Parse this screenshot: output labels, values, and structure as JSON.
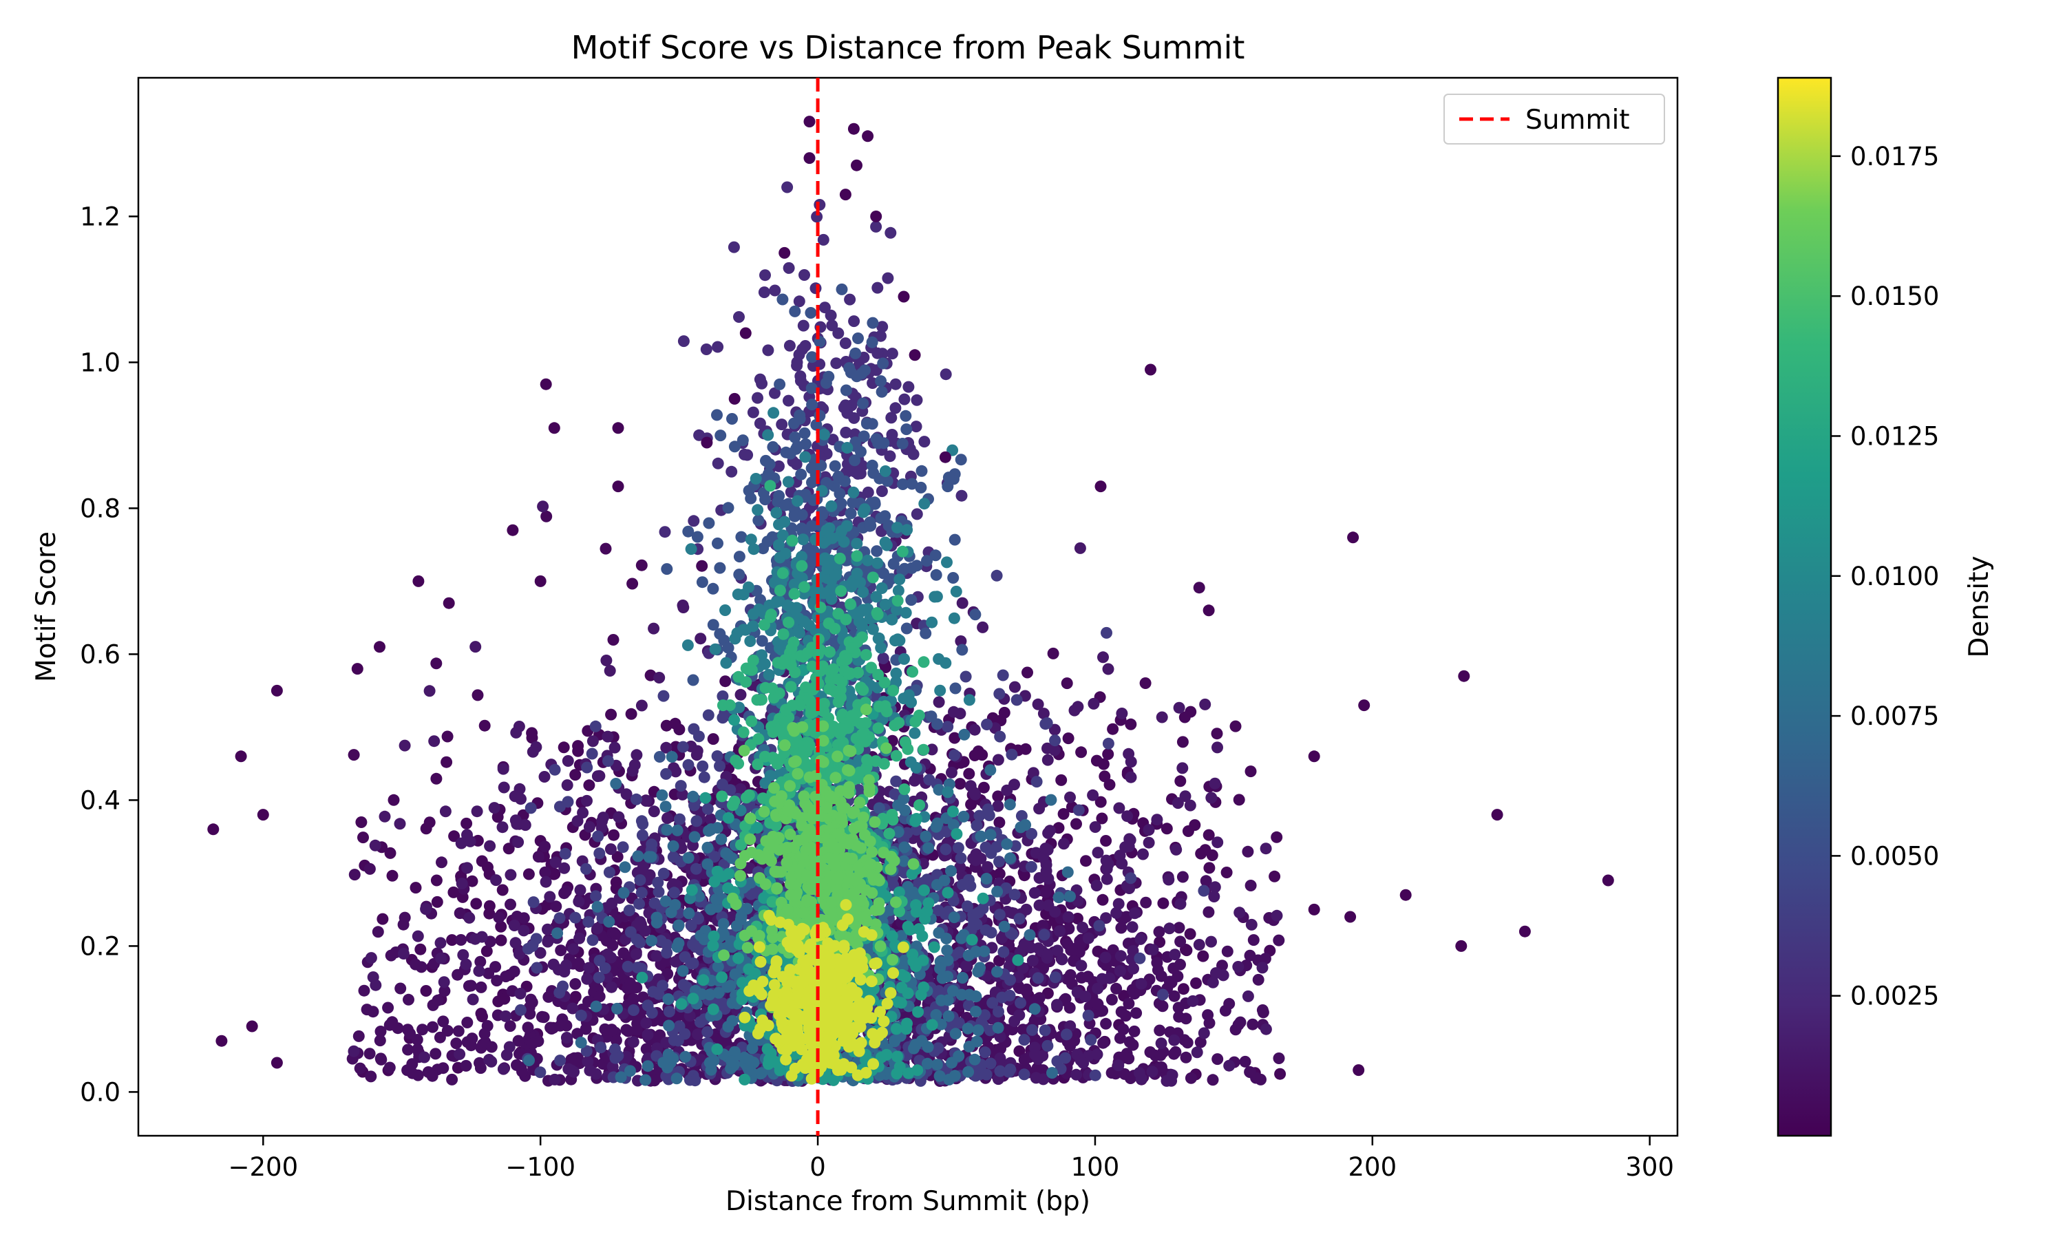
{
  "chart_data": {
    "type": "scatter",
    "title": "Motif Score vs Distance from Peak Summit",
    "xlabel": "Distance from Summit (bp)",
    "ylabel": "Motif Score",
    "xlim": [
      -245,
      310
    ],
    "ylim": [
      -0.06,
      1.39
    ],
    "x_ticks": [
      -200,
      -100,
      0,
      100,
      200,
      300
    ],
    "x_tick_labels": [
      "−200",
      "−100",
      "0",
      "100",
      "200",
      "300"
    ],
    "y_ticks": [
      0.0,
      0.2,
      0.4,
      0.6,
      0.8,
      1.0,
      1.2
    ],
    "y_tick_labels": [
      "0.0",
      "0.2",
      "0.4",
      "0.6",
      "0.8",
      "1.0",
      "1.2"
    ],
    "grid": false,
    "colormap": "viridis",
    "colorbar": {
      "label": "Density",
      "range": [
        0.0,
        0.0189
      ],
      "ticks": [
        0.0025,
        0.005,
        0.0075,
        0.01,
        0.0125,
        0.015,
        0.0175
      ],
      "tick_labels": [
        "0.0025",
        "0.0050",
        "0.0075",
        "0.0100",
        "0.0125",
        "0.0150",
        "0.0175"
      ]
    },
    "reference_line": {
      "name": "Summit",
      "x": 0,
      "color": "#ff0000",
      "style": "dashed"
    },
    "legend": {
      "position": "top-right",
      "entries": [
        "Summit"
      ]
    },
    "points": [
      {
        "x": -218,
        "y": 0.36,
        "d": 0.0002
      },
      {
        "x": -215,
        "y": 0.07,
        "d": 0.0002
      },
      {
        "x": -208,
        "y": 0.46,
        "d": 0.0002
      },
      {
        "x": -204,
        "y": 0.09,
        "d": 0.0002
      },
      {
        "x": -200,
        "y": 0.38,
        "d": 0.0002
      },
      {
        "x": -195,
        "y": 0.55,
        "d": 0.0002
      },
      {
        "x": -195,
        "y": 0.04,
        "d": 0.0002
      },
      {
        "x": -144,
        "y": 0.7,
        "d": 0.0002
      },
      {
        "x": -133,
        "y": 0.67,
        "d": 0.0002
      },
      {
        "x": -110,
        "y": 0.77,
        "d": 0.0002
      },
      {
        "x": -98,
        "y": 0.97,
        "d": 0.0002
      },
      {
        "x": -95,
        "y": 0.91,
        "d": 0.0002
      },
      {
        "x": -72,
        "y": 0.91,
        "d": 0.0002
      },
      {
        "x": -72,
        "y": 0.83,
        "d": 0.0002
      },
      {
        "x": -100,
        "y": 0.7,
        "d": 0.0002
      },
      {
        "x": -158,
        "y": 0.61,
        "d": 0.0002
      },
      {
        "x": -166,
        "y": 0.58,
        "d": 0.0002
      },
      {
        "x": 120,
        "y": 0.99,
        "d": 0.0002
      },
      {
        "x": 102,
        "y": 0.83,
        "d": 0.0002
      },
      {
        "x": 141,
        "y": 0.66,
        "d": 0.0002
      },
      {
        "x": 193,
        "y": 0.76,
        "d": 0.0002
      },
      {
        "x": 233,
        "y": 0.57,
        "d": 0.0002
      },
      {
        "x": 197,
        "y": 0.53,
        "d": 0.0002
      },
      {
        "x": 179,
        "y": 0.46,
        "d": 0.0002
      },
      {
        "x": 245,
        "y": 0.38,
        "d": 0.0002
      },
      {
        "x": 285,
        "y": 0.29,
        "d": 0.0002
      },
      {
        "x": 212,
        "y": 0.27,
        "d": 0.0002
      },
      {
        "x": 179,
        "y": 0.25,
        "d": 0.0002
      },
      {
        "x": 192,
        "y": 0.24,
        "d": 0.0002
      },
      {
        "x": 255,
        "y": 0.22,
        "d": 0.0002
      },
      {
        "x": 232,
        "y": 0.2,
        "d": 0.0002
      },
      {
        "x": 195,
        "y": 0.03,
        "d": 0.0002
      },
      {
        "x": -3,
        "y": 1.33,
        "d": 0.0002
      },
      {
        "x": 13,
        "y": 1.32,
        "d": 0.0002
      },
      {
        "x": 18,
        "y": 1.31,
        "d": 0.0002
      },
      {
        "x": -3,
        "y": 1.28,
        "d": 0.0002
      },
      {
        "x": 14,
        "y": 1.27,
        "d": 0.0002
      },
      {
        "x": 10,
        "y": 1.23,
        "d": 0.0002
      },
      {
        "x": 21,
        "y": 1.2,
        "d": 0.0002
      },
      {
        "x": -12,
        "y": 1.15,
        "d": 0.0002
      },
      {
        "x": 31,
        "y": 1.09,
        "d": 0.0002
      },
      {
        "x": -26,
        "y": 1.04,
        "d": 0.0002
      },
      {
        "x": 35,
        "y": 1.01,
        "d": 0.0002
      },
      {
        "x": -30,
        "y": 0.95,
        "d": 0.0002
      },
      {
        "x": 46,
        "y": 0.87,
        "d": 0.0002
      },
      {
        "x": -40,
        "y": 0.89,
        "d": 0.0002
      }
    ],
    "clusters": [
      {
        "cx": 2,
        "cy": 0.12,
        "sx": 10,
        "sy": 0.05,
        "n": 420,
        "d": 0.0182
      },
      {
        "cx": 1,
        "cy": 0.3,
        "sx": 12,
        "sy": 0.08,
        "n": 420,
        "d": 0.016
      },
      {
        "cx": 2,
        "cy": 0.48,
        "sx": 14,
        "sy": 0.1,
        "n": 380,
        "d": 0.0135
      },
      {
        "cx": 3,
        "cy": 0.2,
        "sx": 20,
        "sy": 0.1,
        "n": 520,
        "d": 0.0115
      },
      {
        "cx": 3,
        "cy": 0.6,
        "sx": 17,
        "sy": 0.12,
        "n": 380,
        "d": 0.009
      },
      {
        "cx": 2,
        "cy": 0.18,
        "sx": 30,
        "sy": 0.12,
        "n": 700,
        "d": 0.0072
      },
      {
        "cx": 4,
        "cy": 0.72,
        "sx": 19,
        "sy": 0.14,
        "n": 420,
        "d": 0.0055
      },
      {
        "cx": 2,
        "cy": 0.22,
        "sx": 42,
        "sy": 0.16,
        "n": 900,
        "d": 0.0038
      },
      {
        "cx": 5,
        "cy": 0.88,
        "sx": 18,
        "sy": 0.12,
        "n": 260,
        "d": 0.0026
      },
      {
        "cx": 2,
        "cy": 0.25,
        "sx": 70,
        "sy": 0.17,
        "n": 1000,
        "d": 0.0014
      },
      {
        "cx": 0,
        "cy": 0.12,
        "sx": 95,
        "sy": 0.09,
        "n": 1300,
        "d": 0.0008
      },
      {
        "cx": 0,
        "cy": 0.3,
        "sx": 100,
        "sy": 0.14,
        "n": 700,
        "d": 0.0004
      }
    ]
  }
}
